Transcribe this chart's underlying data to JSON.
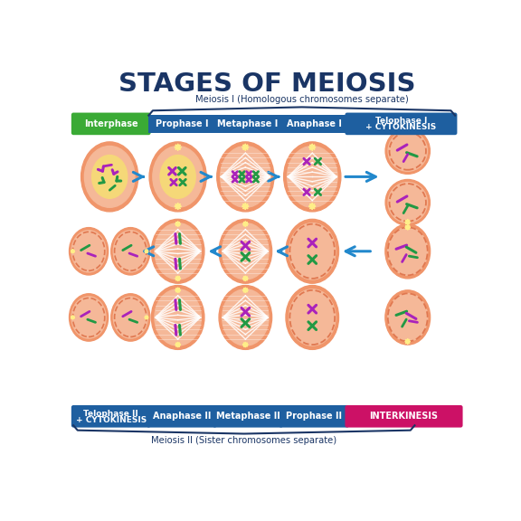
{
  "title": "STAGES OF MEIOSIS",
  "title_color": "#1a3565",
  "bg_color": "#ffffff",
  "meiosis1_label": "Meiosis I (Homologous chromosomes separate)",
  "meiosis2_label": "Meiosis II (Sister chromosomes separate)",
  "top_bar_labels": [
    "Interphase",
    "Prophase I",
    "Metaphase I",
    "Anaphase I",
    "Telophase I\n+ CYTOKINESIS"
  ],
  "top_bar_colors": [
    "#3aaa35",
    "#1e5fa0",
    "#1e5fa0",
    "#1e5fa0",
    "#1e5fa0"
  ],
  "bot_bar_labels": [
    "Telophase II\n+ CYTOKINESIS",
    "Anaphase II",
    "Metaphase II",
    "Prophase II",
    "INTERKINESIS"
  ],
  "bot_bar_colors": [
    "#1e5fa0",
    "#1e5fa0",
    "#1e5fa0",
    "#1e5fa0",
    "#cc1166"
  ],
  "cell_outer": "#f0956a",
  "cell_inner": "#f5b898",
  "nucleus_color": "#f5d878",
  "dashed_color": "#e07850",
  "spindle_color": "#ffffff",
  "star_color": "#ffee88",
  "chrom_purple": "#aa22bb",
  "chrom_green": "#229944",
  "arrow_color": "#2288cc"
}
